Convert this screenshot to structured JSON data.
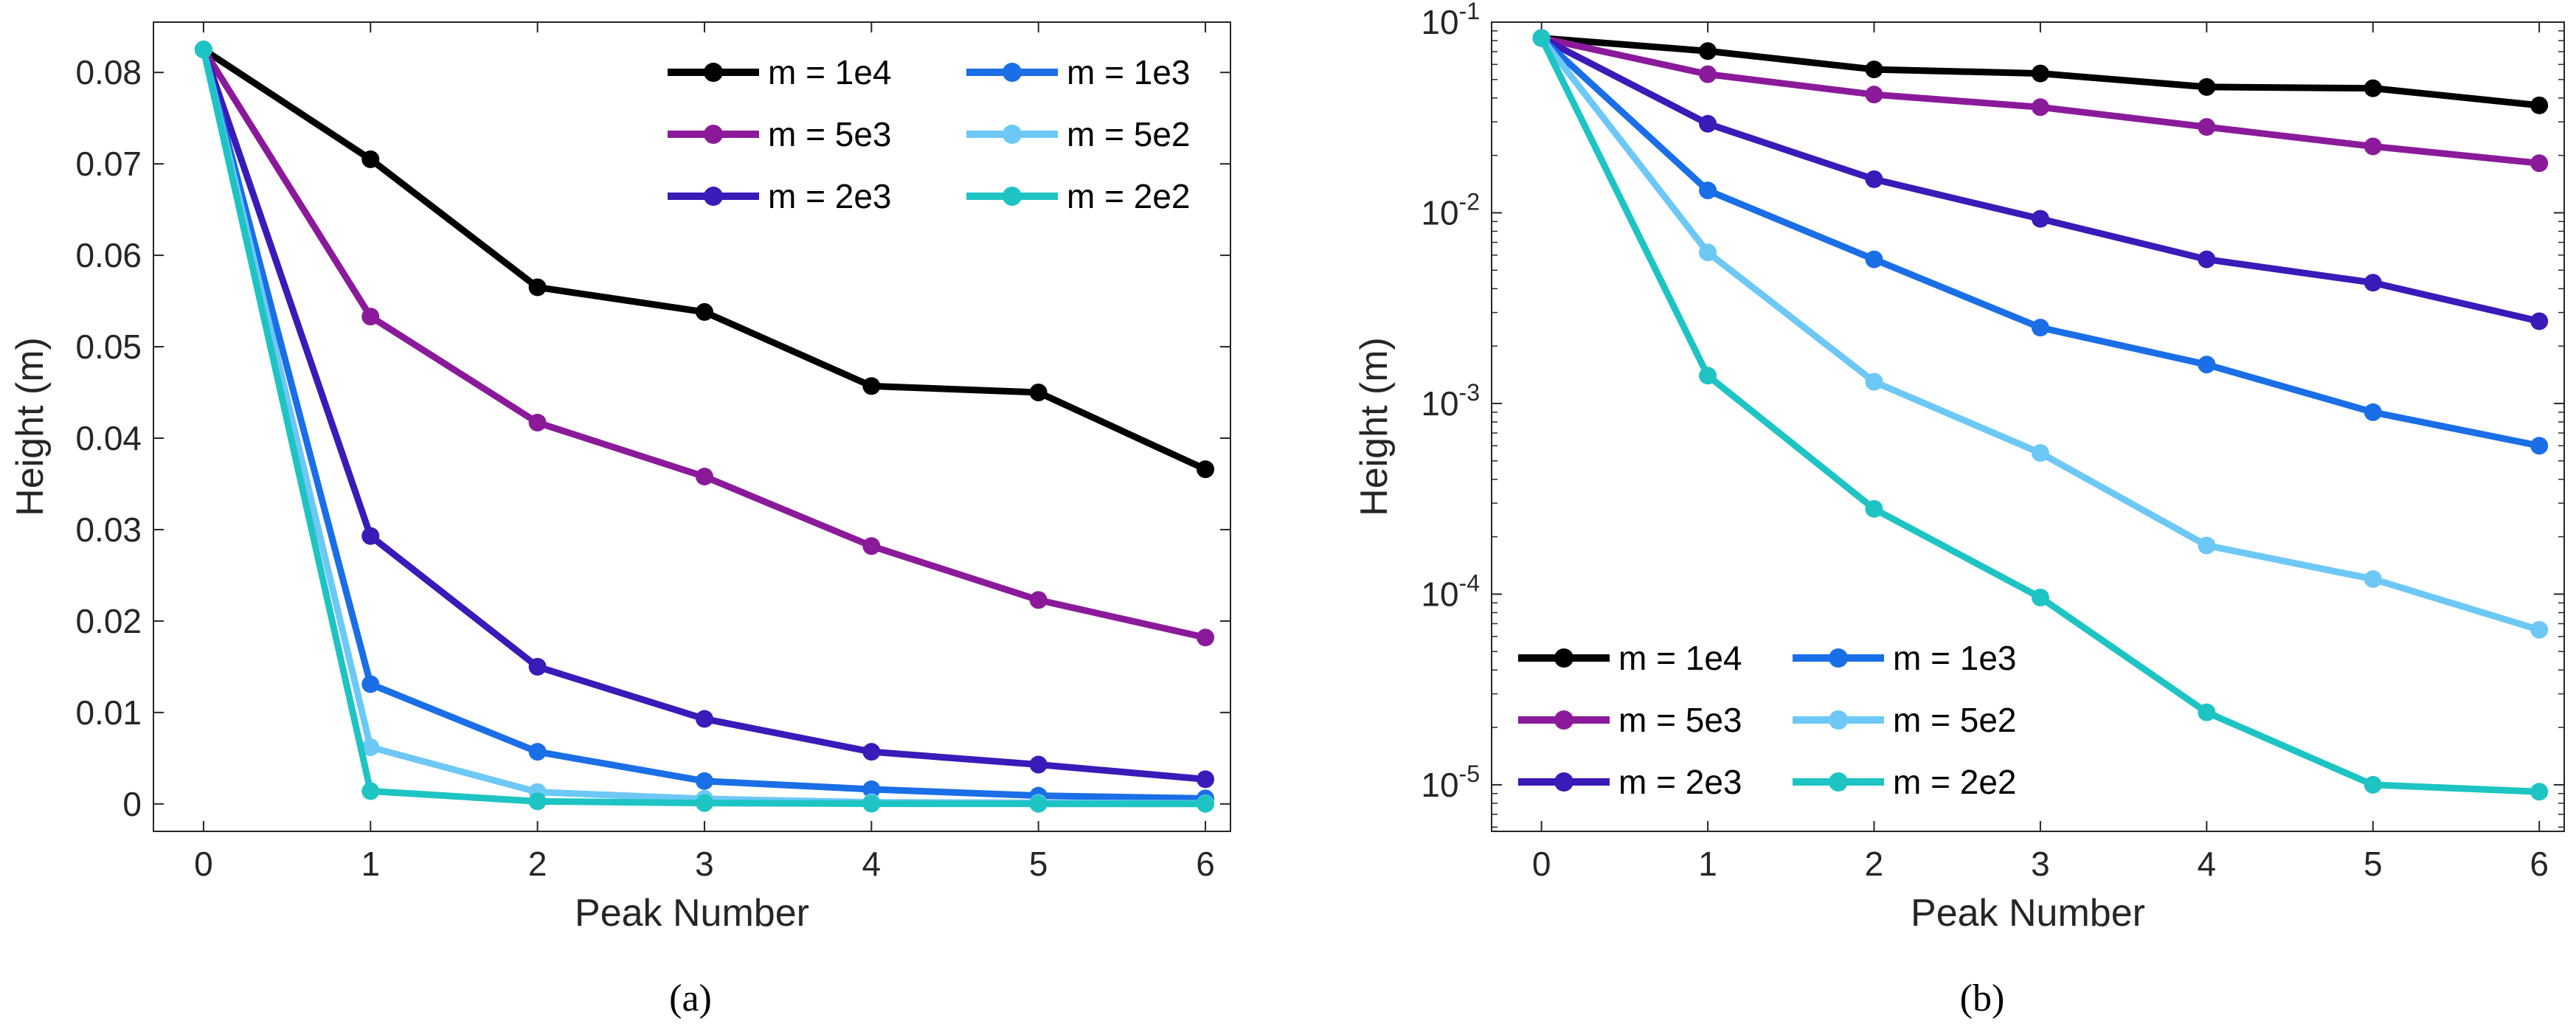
{
  "chart_data": [
    {
      "panel": "a",
      "type": "line",
      "yscale": "linear",
      "xlabel": "Peak Number",
      "ylabel": "Height (m)",
      "caption": "(a)",
      "xlim": [
        -0.3,
        6.15
      ],
      "ylim": [
        -0.003,
        0.0855
      ],
      "xticks": [
        "0",
        "1",
        "2",
        "3",
        "4",
        "5",
        "6"
      ],
      "yticks": [
        {
          "value": 0,
          "label": "0"
        },
        {
          "value": 0.01,
          "label": "0.01"
        },
        {
          "value": 0.02,
          "label": "0.02"
        },
        {
          "value": 0.03,
          "label": "0.03"
        },
        {
          "value": 0.04,
          "label": "0.04"
        },
        {
          "value": 0.05,
          "label": "0.05"
        },
        {
          "value": 0.06,
          "label": "0.06"
        },
        {
          "value": 0.07,
          "label": "0.07"
        },
        {
          "value": 0.08,
          "label": "0.08"
        }
      ],
      "legend_position": "top-right",
      "x": [
        0,
        1,
        2,
        3,
        4,
        5,
        6
      ],
      "series": [
        {
          "name": "m = 1e4",
          "color": "#000000",
          "values": [
            0.0825,
            0.0705,
            0.0565,
            0.0538,
            0.0457,
            0.045,
            0.0366
          ]
        },
        {
          "name": "m = 1e3",
          "color": "#1a6ee6",
          "values": [
            0.0825,
            0.0131,
            0.0057,
            0.0025,
            0.0016,
            0.0009,
            0.0006
          ]
        },
        {
          "name": "m = 5e3",
          "color": "#8b1a9a",
          "values": [
            0.0825,
            0.0533,
            0.0417,
            0.0358,
            0.0282,
            0.0223,
            0.0182
          ]
        },
        {
          "name": "m = 5e2",
          "color": "#6dc8f6",
          "values": [
            0.0825,
            0.0062,
            0.0013,
            0.00055,
            0.00018,
            0.00012,
            6.5e-05
          ]
        },
        {
          "name": "m = 2e3",
          "color": "#3a1ab8",
          "values": [
            0.0825,
            0.0293,
            0.015,
            0.0093,
            0.0057,
            0.0043,
            0.0027
          ]
        },
        {
          "name": "m = 2e2",
          "color": "#1ec4c4",
          "values": [
            0.0825,
            0.0014,
            0.00028,
            9.6e-05,
            2.4e-05,
            1e-05,
            9.2e-06
          ]
        }
      ]
    },
    {
      "panel": "b",
      "type": "line",
      "yscale": "log",
      "xlabel": "Peak Number",
      "ylabel": "Height (m)",
      "caption": "(b)",
      "xlim": [
        -0.3,
        6.15
      ],
      "ylim": [
        5.7e-06,
        0.1
      ],
      "xticks": [
        "0",
        "1",
        "2",
        "3",
        "4",
        "5",
        "6"
      ],
      "yticks": [
        {
          "value": 0.1,
          "base": "10",
          "exp": "-1"
        },
        {
          "value": 0.01,
          "base": "10",
          "exp": "-2"
        },
        {
          "value": 0.001,
          "base": "10",
          "exp": "-3"
        },
        {
          "value": 0.0001,
          "base": "10",
          "exp": "-4"
        },
        {
          "value": 1e-05,
          "base": "10",
          "exp": "-5"
        }
      ],
      "legend_position": "bottom-left",
      "x": [
        0,
        1,
        2,
        3,
        4,
        5,
        6
      ],
      "series": [
        {
          "name": "m = 1e4",
          "color": "#000000",
          "values": [
            0.0825,
            0.0705,
            0.0565,
            0.0538,
            0.0457,
            0.045,
            0.0366
          ]
        },
        {
          "name": "m = 1e3",
          "color": "#1a6ee6",
          "values": [
            0.0825,
            0.0131,
            0.0057,
            0.0025,
            0.0016,
            0.0009,
            0.0006
          ]
        },
        {
          "name": "m = 5e3",
          "color": "#8b1a9a",
          "values": [
            0.0825,
            0.0533,
            0.0417,
            0.0358,
            0.0282,
            0.0223,
            0.0182
          ]
        },
        {
          "name": "m = 5e2",
          "color": "#6dc8f6",
          "values": [
            0.0825,
            0.0062,
            0.0013,
            0.00055,
            0.00018,
            0.00012,
            6.5e-05
          ]
        },
        {
          "name": "m = 2e3",
          "color": "#3a1ab8",
          "values": [
            0.0825,
            0.0293,
            0.015,
            0.0093,
            0.0057,
            0.0043,
            0.0027
          ]
        },
        {
          "name": "m = 2e2",
          "color": "#1ec4c4",
          "values": [
            0.0825,
            0.0014,
            0.00028,
            9.6e-05,
            2.4e-05,
            1e-05,
            9.2e-06
          ]
        }
      ]
    }
  ]
}
